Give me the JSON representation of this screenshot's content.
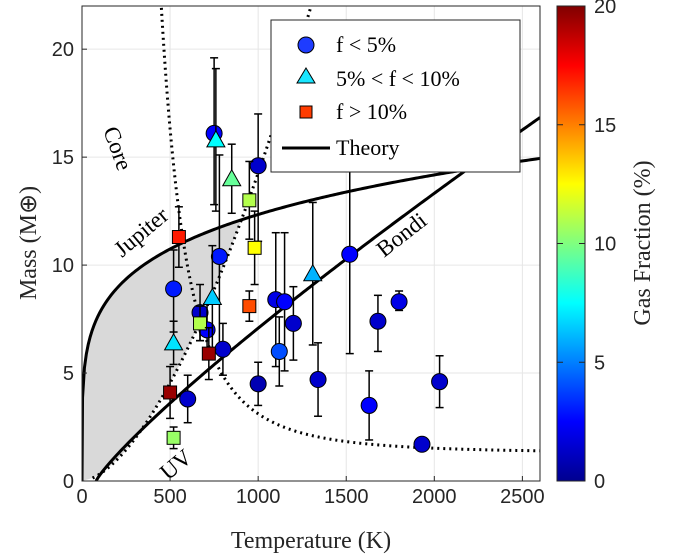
{
  "chart_data": {
    "type": "scatter",
    "xlabel": "Temperature (K)",
    "ylabel": "Mass (M⊕)",
    "xlim": [
      0,
      2600
    ],
    "ylim": [
      0,
      22
    ],
    "xticks": [
      "0",
      "500",
      "1000",
      "1500",
      "2000",
      "2500"
    ],
    "yticks": [
      "0",
      "5",
      "10",
      "15",
      "20"
    ],
    "grid": true,
    "colorbar": {
      "label": "Gas Fraction (%)",
      "range": [
        0,
        20
      ],
      "ticks": [
        "0",
        "5",
        "10",
        "15",
        "20"
      ],
      "colormap": "jet"
    },
    "legend": {
      "position": "top-right",
      "entries": [
        {
          "label": "f < 5%",
          "marker": "circle",
          "color": "#1e3cff"
        },
        {
          "label": "5% < f < 10%",
          "marker": "triangle",
          "color": "#19e6ff"
        },
        {
          "label": "f > 10%",
          "marker": "square",
          "color": "#ff3c00"
        },
        {
          "label": "Theory",
          "marker": "line",
          "color": "#000000"
        }
      ]
    },
    "annotations": [
      "Core",
      "Jupiter",
      "Bondi",
      "UV"
    ],
    "points": [
      {
        "x": 750,
        "y": 16.1,
        "yerr_low": 3.3,
        "yerr_high": 3.5,
        "f": 2.5,
        "marker": "circle"
      },
      {
        "x": 1000,
        "y": 14.6,
        "yerr_low": 3.5,
        "yerr_high": 2.4,
        "f": 1.5,
        "marker": "circle"
      },
      {
        "x": 780,
        "y": 10.4,
        "yerr_low": 4.4,
        "yerr_high": 4.7,
        "f": 3,
        "marker": "circle"
      },
      {
        "x": 1520,
        "y": 10.5,
        "yerr_low": 4.6,
        "yerr_high": 4.7,
        "f": 2.5,
        "marker": "circle"
      },
      {
        "x": 520,
        "y": 8.9,
        "yerr_low": 2.0,
        "yerr_high": 1.8,
        "f": 3,
        "marker": "circle"
      },
      {
        "x": 1100,
        "y": 8.4,
        "yerr_low": 3.1,
        "yerr_high": 3.1,
        "f": 2,
        "marker": "circle"
      },
      {
        "x": 1150,
        "y": 8.3,
        "yerr_low": 3.2,
        "yerr_high": 3.2,
        "f": 2.5,
        "marker": "circle"
      },
      {
        "x": 670,
        "y": 7.8,
        "yerr_low": 1.3,
        "yerr_high": 1.3,
        "f": 1.5,
        "marker": "circle"
      },
      {
        "x": 1800,
        "y": 8.3,
        "yerr_low": 0.4,
        "yerr_high": 0.5,
        "f": 2,
        "marker": "circle"
      },
      {
        "x": 1200,
        "y": 7.3,
        "yerr_low": 1.7,
        "yerr_high": 1.7,
        "f": 1.5,
        "marker": "circle"
      },
      {
        "x": 1680,
        "y": 7.4,
        "yerr_low": 1.4,
        "yerr_high": 1.2,
        "f": 1.5,
        "marker": "circle"
      },
      {
        "x": 710,
        "y": 7.0,
        "yerr_low": 1.2,
        "yerr_high": 1.2,
        "f": 2.5,
        "marker": "circle"
      },
      {
        "x": 1120,
        "y": 6.0,
        "yerr_low": 1.6,
        "yerr_high": 1.6,
        "f": 4,
        "marker": "circle"
      },
      {
        "x": 800,
        "y": 6.1,
        "yerr_low": 1.2,
        "yerr_high": 1.2,
        "f": 1.5,
        "marker": "circle"
      },
      {
        "x": 1340,
        "y": 4.7,
        "yerr_low": 1.7,
        "yerr_high": 1.7,
        "f": 1.5,
        "marker": "circle"
      },
      {
        "x": 1000,
        "y": 4.5,
        "yerr_low": 1.0,
        "yerr_high": 1.0,
        "f": 1,
        "marker": "circle"
      },
      {
        "x": 2030,
        "y": 4.6,
        "yerr_low": 1.2,
        "yerr_high": 1.2,
        "f": 1.5,
        "marker": "circle"
      },
      {
        "x": 600,
        "y": 3.8,
        "yerr_low": 1.1,
        "yerr_high": 1.1,
        "f": 1.5,
        "marker": "circle"
      },
      {
        "x": 1630,
        "y": 3.5,
        "yerr_low": 1.6,
        "yerr_high": 1.6,
        "f": 2.5,
        "marker": "circle"
      },
      {
        "x": 1930,
        "y": 1.7,
        "yerr_low": 0.25,
        "yerr_high": 0.25,
        "f": 1.5,
        "marker": "circle"
      },
      {
        "x": 760,
        "y": 15.8,
        "yerr_low": 3.3,
        "yerr_high": 3.3,
        "f": 7.5,
        "marker": "triangle"
      },
      {
        "x": 850,
        "y": 14.0,
        "yerr_low": 1.6,
        "yerr_high": 1.6,
        "f": 9.5,
        "marker": "triangle"
      },
      {
        "x": 1310,
        "y": 9.6,
        "yerr_low": 3.3,
        "yerr_high": 3.3,
        "f": 6,
        "marker": "triangle"
      },
      {
        "x": 740,
        "y": 8.5,
        "yerr_low": 2.4,
        "yerr_high": 2.4,
        "f": 6.5,
        "marker": "triangle"
      },
      {
        "x": 520,
        "y": 6.4,
        "yerr_low": 1.0,
        "yerr_high": 1.0,
        "f": 7,
        "marker": "triangle"
      },
      {
        "x": 950,
        "y": 13.0,
        "yerr_low": 1.8,
        "yerr_high": 1.8,
        "f": 11,
        "marker": "square"
      },
      {
        "x": 980,
        "y": 10.8,
        "yerr_low": 1.7,
        "yerr_high": 1.7,
        "f": 12.5,
        "marker": "square"
      },
      {
        "x": 550,
        "y": 11.3,
        "yerr_low": 1.4,
        "yerr_high": 1.4,
        "f": 17,
        "marker": "square"
      },
      {
        "x": 950,
        "y": 8.1,
        "yerr_low": 0.7,
        "yerr_high": 0.7,
        "f": 16,
        "marker": "square"
      },
      {
        "x": 670,
        "y": 7.3,
        "yerr_low": 0.8,
        "yerr_high": 0.8,
        "f": 11,
        "marker": "square"
      },
      {
        "x": 720,
        "y": 5.9,
        "yerr_low": 1.2,
        "yerr_high": 1.2,
        "f": 19.5,
        "marker": "square"
      },
      {
        "x": 500,
        "y": 4.1,
        "yerr_low": 1.2,
        "yerr_high": 1.2,
        "f": 19.5,
        "marker": "square"
      },
      {
        "x": 520,
        "y": 2.0,
        "yerr_low": 0.5,
        "yerr_high": 0.5,
        "f": 10.5,
        "marker": "square"
      }
    ]
  }
}
